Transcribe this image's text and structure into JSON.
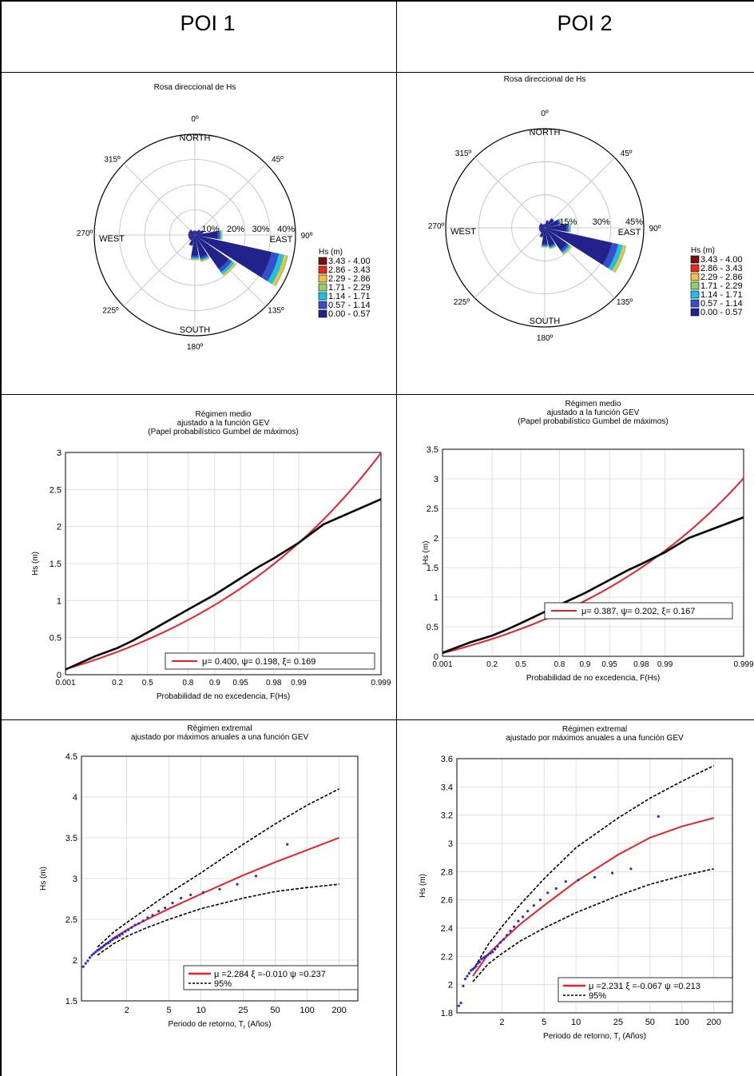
{
  "headers": [
    "POI 1",
    "POI 2"
  ],
  "chart_data": [
    {
      "type": "rose",
      "id": "rose1",
      "title": "Rosa direccional de  Hs",
      "direction_labels": [
        "0º",
        "NORTH",
        "45º",
        "90º",
        "EAST",
        "135º",
        "180º",
        "SOUTH",
        "225º",
        "270º",
        "WEST",
        "315º"
      ],
      "ring_labels": [
        "10%",
        "20%",
        "30%",
        "40%"
      ],
      "rmax": 40,
      "legend_title": "Hs (m)",
      "bins": [
        "3.43 - 4.00",
        "2.86 - 3.43",
        "2.29 - 2.86",
        "1.71 - 2.29",
        "1.14 - 1.71",
        "0.57 - 1.14",
        "0.00 - 0.57"
      ],
      "colors": [
        "#7a1010",
        "#e8281e",
        "#f0c040",
        "#90d070",
        "#20c0e0",
        "#3550c8",
        "#22228a"
      ],
      "petals": [
        {
          "dir": 0,
          "r": 2
        },
        {
          "dir": 22.5,
          "r": 2
        },
        {
          "dir": 45,
          "r": 3
        },
        {
          "dir": 67.5,
          "r": 4
        },
        {
          "dir": 90,
          "r": 11
        },
        {
          "dir": 112.5,
          "r": 38
        },
        {
          "dir": 135,
          "r": 20
        },
        {
          "dir": 157.5,
          "r": 11
        },
        {
          "dir": 180,
          "r": 10
        },
        {
          "dir": 202.5,
          "r": 5
        },
        {
          "dir": 225,
          "r": 3
        },
        {
          "dir": 247.5,
          "r": 3
        },
        {
          "dir": 270,
          "r": 3
        },
        {
          "dir": 292.5,
          "r": 3
        },
        {
          "dir": 315,
          "r": 3
        },
        {
          "dir": 337.5,
          "r": 2
        }
      ]
    },
    {
      "type": "rose",
      "id": "rose2",
      "title": "Rosa direccional de  Hs",
      "direction_labels": [
        "0º",
        "NORTH",
        "45º",
        "90º",
        "EAST",
        "135º",
        "180º",
        "SOUTH",
        "225º",
        "270º",
        "WEST",
        "315º"
      ],
      "ring_labels": [
        "15%",
        "30%",
        "45%"
      ],
      "rmax": 45,
      "legend_title": "Hs (m)",
      "bins": [
        "3.43 - 4.00",
        "2.86 - 3.43",
        "2.29 - 2.86",
        "1.71 - 2.29",
        "1.14 - 1.71",
        "0.57 - 1.14",
        "0.00 - 0.57"
      ],
      "colors": [
        "#7a1010",
        "#e8281e",
        "#f0c040",
        "#90d070",
        "#20c0e0",
        "#3550c8",
        "#22228a"
      ],
      "petals": [
        {
          "dir": 0,
          "r": 2
        },
        {
          "dir": 22.5,
          "r": 4
        },
        {
          "dir": 45,
          "r": 6
        },
        {
          "dir": 67.5,
          "r": 8
        },
        {
          "dir": 90,
          "r": 12
        },
        {
          "dir": 112.5,
          "r": 38
        },
        {
          "dir": 135,
          "r": 15
        },
        {
          "dir": 157.5,
          "r": 10
        },
        {
          "dir": 180,
          "r": 9
        },
        {
          "dir": 202.5,
          "r": 5
        },
        {
          "dir": 225,
          "r": 3
        },
        {
          "dir": 247.5,
          "r": 3
        },
        {
          "dir": 270,
          "r": 3
        },
        {
          "dir": 292.5,
          "r": 3
        },
        {
          "dir": 315,
          "r": 3
        },
        {
          "dir": 337.5,
          "r": 2
        }
      ]
    },
    {
      "type": "line",
      "id": "medio1",
      "title": [
        "Régimen medio",
        "ajustado a la función GEV",
        "(Papel probabilístico Gumbel de máximos)"
      ],
      "xlabel": "Probabilidad de no excedencia, F(Hs)",
      "ylabel": "Hs (m)",
      "x_scale": "gumbel",
      "x_ticks": [
        0.001,
        0.2,
        0.5,
        0.8,
        0.9,
        0.95,
        0.98,
        0.99,
        0.999
      ],
      "x_tick_labels": [
        "0.001",
        "0.2",
        "0.5",
        "0.8",
        "0.9",
        "0.95",
        "0.98",
        "0.99",
        "0.999"
      ],
      "ylim": [
        0,
        3
      ],
      "y_ticks": [
        0,
        0.5,
        1,
        1.5,
        2,
        2.5,
        3
      ],
      "y_tick_labels": [
        "0",
        "0.5",
        "1",
        "1.5",
        "2",
        "2.5",
        "3"
      ],
      "grid": true,
      "legend_position": "bottom-right",
      "series": [
        {
          "name": "μ= 0.400, ψ= 0.198, ξ= 0.169",
          "color": "#e8202a",
          "params": {
            "mu": 0.4,
            "psi": 0.198,
            "xi": 0.169
          }
        },
        {
          "color": "#000000",
          "x": [
            0.001,
            0.05,
            0.2,
            0.35,
            0.5,
            0.65,
            0.8,
            0.9,
            0.95,
            0.97,
            0.98,
            0.99,
            0.995,
            0.999
          ],
          "y": [
            0.07,
            0.25,
            0.36,
            0.46,
            0.57,
            0.7,
            0.88,
            1.08,
            1.3,
            1.46,
            1.57,
            1.78,
            2.03,
            2.37
          ]
        }
      ]
    },
    {
      "type": "line",
      "id": "medio2",
      "title": [
        "Régimen medio",
        "ajustado a la función GEV",
        "(Papel probabilístico Gumbel de máximos)"
      ],
      "xlabel": "Probabilidad de no excedencia, F(Hs)",
      "ylabel": "Hs (m)",
      "x_scale": "gumbel",
      "x_ticks": [
        0.001,
        0.2,
        0.5,
        0.8,
        0.9,
        0.95,
        0.98,
        0.99,
        0.999
      ],
      "x_tick_labels": [
        "0.001",
        "0.2",
        "0.5",
        "0.8",
        "0.9",
        "0.95",
        "0.98",
        "0.99",
        "0.999"
      ],
      "ylim": [
        0,
        3.5
      ],
      "y_ticks": [
        0,
        0.5,
        1,
        1.5,
        2,
        2.5,
        3,
        3.5
      ],
      "y_tick_labels": [
        "0",
        "0.5",
        "1",
        "1.5",
        "2",
        "2.5",
        "3",
        "3.5"
      ],
      "grid": true,
      "legend_position": "bottom-right",
      "series": [
        {
          "name": "μ= 0.387, ψ= 0.202, ξ= 0.167",
          "color": "#e8202a",
          "params": {
            "mu": 0.387,
            "psi": 0.202,
            "xi": 0.167
          }
        },
        {
          "color": "#000000",
          "x": [
            0.001,
            0.05,
            0.2,
            0.35,
            0.5,
            0.65,
            0.8,
            0.9,
            0.95,
            0.97,
            0.98,
            0.99,
            0.995,
            0.999
          ],
          "y": [
            0.06,
            0.24,
            0.35,
            0.45,
            0.56,
            0.69,
            0.87,
            1.07,
            1.29,
            1.45,
            1.56,
            1.76,
            2.0,
            2.35
          ]
        }
      ]
    },
    {
      "type": "line",
      "id": "extremal1",
      "title": [
        "Régimen extremal",
        "ajustado por máximos anuales a una función GEV"
      ],
      "xlabel": "Periodo de retorno, T",
      "xlabel_sub": "r",
      "xlabel_tail": " (Años)",
      "ylabel": "Hs (m)",
      "x_scale": "log",
      "x_ticks": [
        2,
        5,
        10,
        25,
        50,
        100,
        200
      ],
      "x_tick_labels": [
        "2",
        "5",
        "10",
        "25",
        "50",
        "100",
        "200"
      ],
      "xlim": [
        0.75,
        300
      ],
      "ylim": [
        1.5,
        4.5
      ],
      "y_ticks": [
        1.5,
        2,
        2.5,
        3,
        3.5,
        4,
        4.5
      ],
      "y_tick_labels": [
        "1.5",
        "2",
        "2.5",
        "3",
        "3.5",
        "4",
        "4.5"
      ],
      "grid": true,
      "legend_position": "bottom-right",
      "series": [
        {
          "name": "μ =2.284 ξ =-0.010 ψ =0.237",
          "color": "#e8202a",
          "x": [
            1.06,
            1.5,
            2,
            3,
            5,
            10,
            25,
            50,
            100,
            200
          ],
          "y": [
            2.11,
            2.27,
            2.37,
            2.49,
            2.63,
            2.81,
            3.04,
            3.2,
            3.35,
            3.5
          ]
        },
        {
          "name": "95%",
          "color": "#000000",
          "dashed": true,
          "x": [
            1.06,
            1.5,
            2,
            3,
            5,
            10,
            25,
            50,
            100,
            200
          ],
          "y": [
            2.16,
            2.34,
            2.46,
            2.62,
            2.82,
            3.07,
            3.42,
            3.67,
            3.9,
            4.1
          ]
        },
        {
          "color": "#000000",
          "dashed": true,
          "x": [
            1.06,
            1.5,
            2,
            3,
            5,
            10,
            25,
            50,
            100,
            200
          ],
          "y": [
            2.06,
            2.2,
            2.29,
            2.39,
            2.5,
            2.63,
            2.76,
            2.84,
            2.89,
            2.93
          ]
        },
        {
          "type": "scatter",
          "color": "#2a2ad0",
          "x": [
            0.78,
            0.82,
            0.86,
            0.9,
            0.94,
            0.98,
            1.02,
            1.06,
            1.1,
            1.14,
            1.18,
            1.23,
            1.28,
            1.34,
            1.4,
            1.47,
            1.55,
            1.63,
            1.72,
            1.82,
            1.94,
            2.07,
            2.22,
            2.4,
            2.6,
            2.85,
            3.15,
            3.5,
            4.0,
            4.6,
            5.4,
            6.5,
            8.0,
            10.5,
            15,
            22,
            33,
            65
          ],
          "y": [
            1.92,
            1.96,
            1.99,
            2.03,
            2.06,
            2.08,
            2.1,
            2.12,
            2.13,
            2.15,
            2.16,
            2.18,
            2.2,
            2.21,
            2.23,
            2.25,
            2.27,
            2.28,
            2.3,
            2.32,
            2.35,
            2.37,
            2.4,
            2.43,
            2.45,
            2.48,
            2.52,
            2.55,
            2.6,
            2.64,
            2.7,
            2.76,
            2.8,
            2.83,
            2.87,
            2.93,
            3.03,
            3.42
          ]
        }
      ]
    },
    {
      "type": "line",
      "id": "extremal2",
      "title": [
        "Régimen extremal",
        "ajustado por máximos anuales a una función GEV"
      ],
      "xlabel": "Periodo de retorno, T",
      "xlabel_sub": "r",
      "xlabel_tail": " (Años)",
      "ylabel": "Hs (m)",
      "x_scale": "log",
      "x_ticks": [
        2,
        5,
        10,
        25,
        50,
        100,
        200
      ],
      "x_tick_labels": [
        "2",
        "5",
        "10",
        "25",
        "50",
        "100",
        "200"
      ],
      "xlim": [
        0.75,
        300
      ],
      "ylim": [
        1.8,
        3.6
      ],
      "y_ticks": [
        1.8,
        2,
        2.2,
        2.4,
        2.6,
        2.8,
        3,
        3.2,
        3.4,
        3.6
      ],
      "y_tick_labels": [
        "1.8",
        "2",
        "2.2",
        "2.4",
        "2.6",
        "2.8",
        "3",
        "3.2",
        "3.4",
        "3.6"
      ],
      "grid": true,
      "legend_position": "bottom-right",
      "series": [
        {
          "name": "μ =2.231 ξ =-0.067 ψ =0.213",
          "color": "#e8202a",
          "x": [
            1.06,
            1.5,
            2,
            3,
            5,
            10,
            25,
            50,
            100,
            200
          ],
          "y": [
            2.06,
            2.22,
            2.31,
            2.43,
            2.56,
            2.73,
            2.92,
            3.04,
            3.12,
            3.18
          ]
        },
        {
          "name": "95%",
          "color": "#000000",
          "dashed": true,
          "x": [
            1.06,
            1.5,
            2,
            3,
            5,
            10,
            25,
            50,
            100,
            200
          ],
          "y": [
            2.1,
            2.29,
            2.41,
            2.57,
            2.75,
            2.97,
            3.18,
            3.32,
            3.44,
            3.55
          ]
        },
        {
          "color": "#000000",
          "dashed": true,
          "x": [
            1.06,
            1.5,
            2,
            3,
            5,
            10,
            25,
            50,
            100,
            200
          ],
          "y": [
            2.02,
            2.15,
            2.22,
            2.31,
            2.4,
            2.51,
            2.63,
            2.71,
            2.77,
            2.82
          ]
        },
        {
          "type": "scatter",
          "color": "#2a2ad0",
          "x": [
            0.78,
            0.82,
            0.86,
            0.9,
            0.94,
            0.98,
            1.02,
            1.06,
            1.1,
            1.14,
            1.18,
            1.23,
            1.28,
            1.34,
            1.4,
            1.47,
            1.55,
            1.63,
            1.72,
            1.82,
            1.94,
            2.07,
            2.22,
            2.4,
            2.6,
            2.85,
            3.15,
            3.5,
            4.0,
            4.6,
            5.4,
            6.5,
            8.0,
            10.5,
            15,
            22,
            33,
            60
          ],
          "y": [
            1.85,
            1.87,
            1.99,
            2.04,
            2.06,
            2.08,
            2.1,
            2.11,
            2.12,
            2.13,
            2.15,
            2.16,
            2.18,
            2.19,
            2.2,
            2.21,
            2.22,
            2.23,
            2.25,
            2.27,
            2.3,
            2.32,
            2.35,
            2.38,
            2.41,
            2.45,
            2.48,
            2.52,
            2.56,
            2.6,
            2.65,
            2.68,
            2.73,
            2.74,
            2.76,
            2.79,
            2.82,
            3.19
          ]
        }
      ]
    }
  ]
}
